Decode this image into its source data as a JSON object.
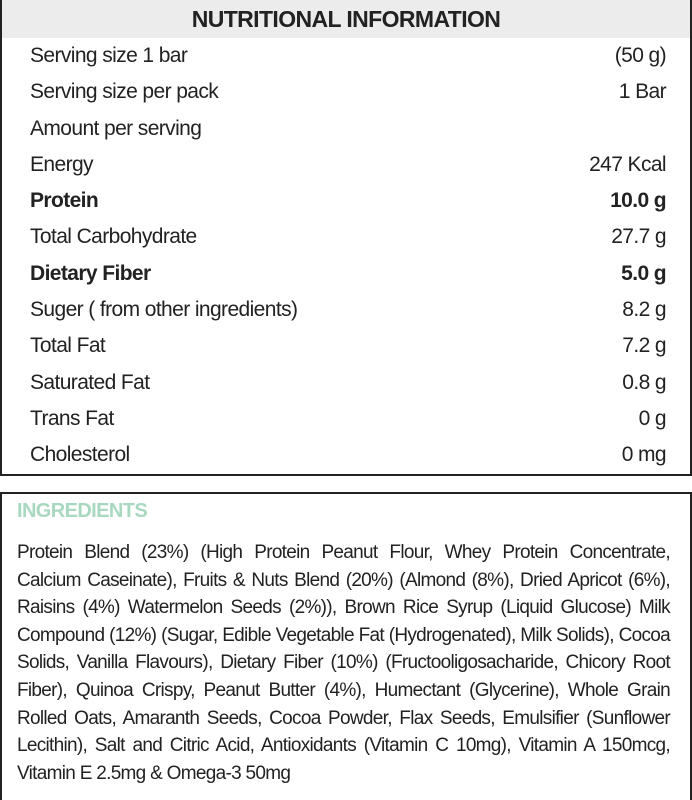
{
  "nutrition": {
    "title": "NUTRITIONAL INFORMATION",
    "rows": [
      {
        "label": "Serving size 1 bar",
        "value": "(50 g)",
        "bold": false
      },
      {
        "label": "Serving size per pack",
        "value": "1 Bar",
        "bold": false
      },
      {
        "label": "Amount per serving",
        "value": "",
        "bold": false
      },
      {
        "label": "Energy",
        "value": "247 Kcal",
        "bold": false
      },
      {
        "label": "Protein",
        "value": "10.0 g",
        "bold": true
      },
      {
        "label": "Total Carbohydrate",
        "value": "27.7 g",
        "bold": false
      },
      {
        "label": "Dietary Fiber",
        "value": "5.0 g",
        "bold": true
      },
      {
        "label": "Suger ( from other ingredients)",
        "value": "8.2 g",
        "bold": false
      },
      {
        "label": "Total Fat",
        "value": "7.2 g",
        "bold": false
      },
      {
        "label": "Saturated Fat",
        "value": "0.8 g",
        "bold": false
      },
      {
        "label": "Trans Fat",
        "value": "0 g",
        "bold": false
      },
      {
        "label": "Cholesterol",
        "value": "0 mg",
        "bold": false
      }
    ]
  },
  "ingredients": {
    "title": "INGREDIENTS",
    "title_color": "#a8d8bf",
    "text": "Protein Blend (23%) (High Protein Peanut Flour, Whey Protein Concentrate, Calcium Caseinate), Fruits & Nuts Blend (20%) (Almond (8%), Dried Apricot (6%), Raisins (4%) Watermelon Seeds (2%)), Brown Rice Syrup (Liquid Glucose) Milk Compound (12%) (Sugar, Edible Vegetable Fat (Hydrogenated), Milk Solids), Cocoa Solids, Vanilla Flavours), Dietary Fiber (10%) (Fructooligosacharide, Chicory Root Fiber), Quinoa Crispy, Peanut Butter (4%), Humectant (Glycerine), Whole Grain Rolled Oats, Amaranth Seeds, Cocoa Powder, Flax Seeds, Emulsifier (Sunflower Lecithin), Salt and Citric Acid, Antioxidants (Vitamin C 10mg), Vitamin A 150mcg, Vitamin E 2.5mg & Omega-3 50mg"
  }
}
